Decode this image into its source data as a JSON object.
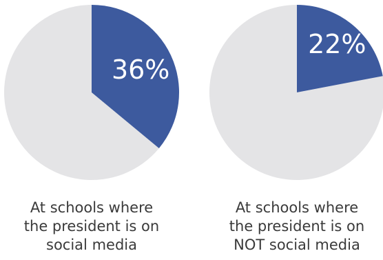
{
  "colors": {
    "highlight": "#3d5a9e",
    "remainder": "#e4e4e6",
    "label_text": "#ffffff",
    "caption_text": "#3a3a3a"
  },
  "chart_data": [
    {
      "type": "pie",
      "values": [
        36,
        64
      ],
      "highlight_label": "36%",
      "caption_lines": [
        "At schools where",
        "the president is on",
        "social media"
      ]
    },
    {
      "type": "pie",
      "values": [
        22,
        78
      ],
      "highlight_label": "22%",
      "caption_lines": [
        "At schools where",
        "the president is on",
        "NOT social media"
      ]
    }
  ]
}
